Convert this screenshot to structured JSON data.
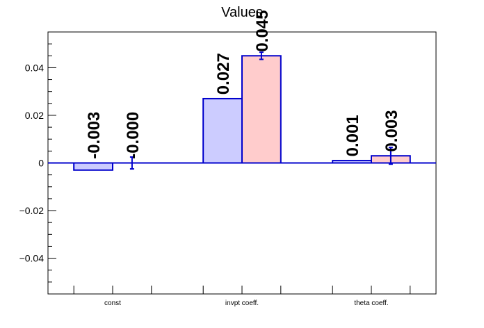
{
  "chart_data": {
    "type": "bar",
    "title": "Values",
    "xlabel": "",
    "ylabel": "",
    "categories": [
      "const",
      "invpt coeff.",
      "theta coeff."
    ],
    "ylim": [
      -0.055,
      0.055
    ],
    "yticks": [
      -0.04,
      -0.02,
      0,
      0.02,
      0.04
    ],
    "ytick_labels": [
      "−0.04",
      "−0.02",
      "0",
      "0.02",
      "0.04"
    ],
    "grid": false,
    "legend": "none",
    "series": [
      {
        "values": [
          -0.003,
          0.027,
          0.001
        ],
        "errors": [
          0.0,
          0.0,
          0.0
        ],
        "labels": [
          "-0.003",
          "0.027",
          "0.001"
        ],
        "fill": "#ccccff"
      },
      {
        "values": [
          0.0,
          0.045,
          0.003
        ],
        "errors": [
          0.0025,
          0.0015,
          0.0035
        ],
        "labels": [
          "-0.000",
          "0.045",
          "0.003"
        ],
        "fill": "#ffcccc"
      }
    ],
    "colors": {
      "edge": "#0000cc",
      "axis": "#000000"
    }
  }
}
